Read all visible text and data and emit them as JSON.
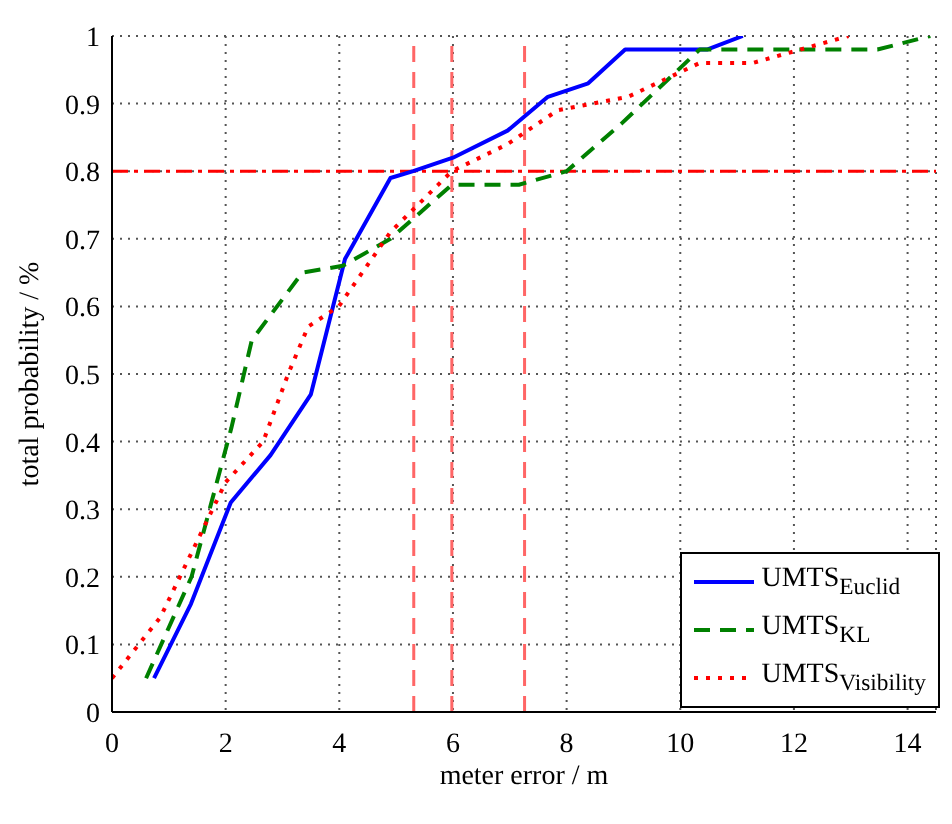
{
  "chart_data": {
    "type": "line",
    "xlabel": "meter error / m",
    "ylabel": "total probability / %",
    "xlim": [
      0,
      14.5
    ],
    "ylim": [
      0,
      1
    ],
    "xticks": [
      0,
      2,
      4,
      6,
      8,
      10,
      12,
      14
    ],
    "yticks": [
      0,
      0.1,
      0.2,
      0.3,
      0.4,
      0.5,
      0.6,
      0.7,
      0.8,
      0.9,
      1
    ],
    "grid": true,
    "legend": "bottom right",
    "marker": "none",
    "series": [
      {
        "name": "UMTS$_{Euclid}$",
        "color": "#0000ff",
        "line_style": "solid",
        "x": [
          0.74,
          1.39,
          2.09,
          2.79,
          3.5,
          4.1,
          4.9,
          5.3,
          6.0,
          6.96,
          7.67,
          8.38,
          9.03,
          10.47,
          11.1
        ],
        "values": [
          0.05,
          0.16,
          0.31,
          0.38,
          0.47,
          0.67,
          0.79,
          0.8,
          0.82,
          0.86,
          0.91,
          0.93,
          0.98,
          0.98,
          1.0
        ]
      },
      {
        "name": "UMTS$_{KL}$",
        "color": "#008000",
        "line_style": "dashed",
        "x": [
          0.6,
          1.4,
          2.1,
          2.46,
          3.35,
          4.06,
          4.9,
          5.98,
          7.16,
          8.0,
          8.96,
          10.34,
          13.47,
          14.4
        ],
        "values": [
          0.05,
          0.2,
          0.42,
          0.55,
          0.65,
          0.66,
          0.7,
          0.78,
          0.78,
          0.8,
          0.87,
          0.98,
          0.98,
          1.0
        ]
      },
      {
        "name": "UMTS$_{Visibility}$",
        "color": "#ff0000",
        "line_style": "dotted",
        "x": [
          0,
          0.85,
          2.0,
          2.66,
          3.1,
          3.45,
          3.99,
          4.9,
          5.98,
          6.96,
          7.84,
          9.08,
          10.34,
          11.27,
          12.96
        ],
        "values": [
          0.05,
          0.14,
          0.34,
          0.4,
          0.5,
          0.57,
          0.6,
          0.71,
          0.8,
          0.84,
          0.89,
          0.91,
          0.96,
          0.96,
          1.0
        ]
      }
    ],
    "ref_lines": [
      {
        "axis": "x",
        "value": 5.31,
        "color": "#ff6666",
        "line_style": "dashed"
      },
      {
        "axis": "x",
        "value": 5.98,
        "color": "#ff6666",
        "line_style": "dashed"
      },
      {
        "axis": "x",
        "value": 7.26,
        "color": "#ff6666",
        "line_style": "dashed"
      },
      {
        "axis": "y",
        "value": 0.8,
        "color": "#ff0000",
        "line_style": "dashdot"
      }
    ]
  }
}
